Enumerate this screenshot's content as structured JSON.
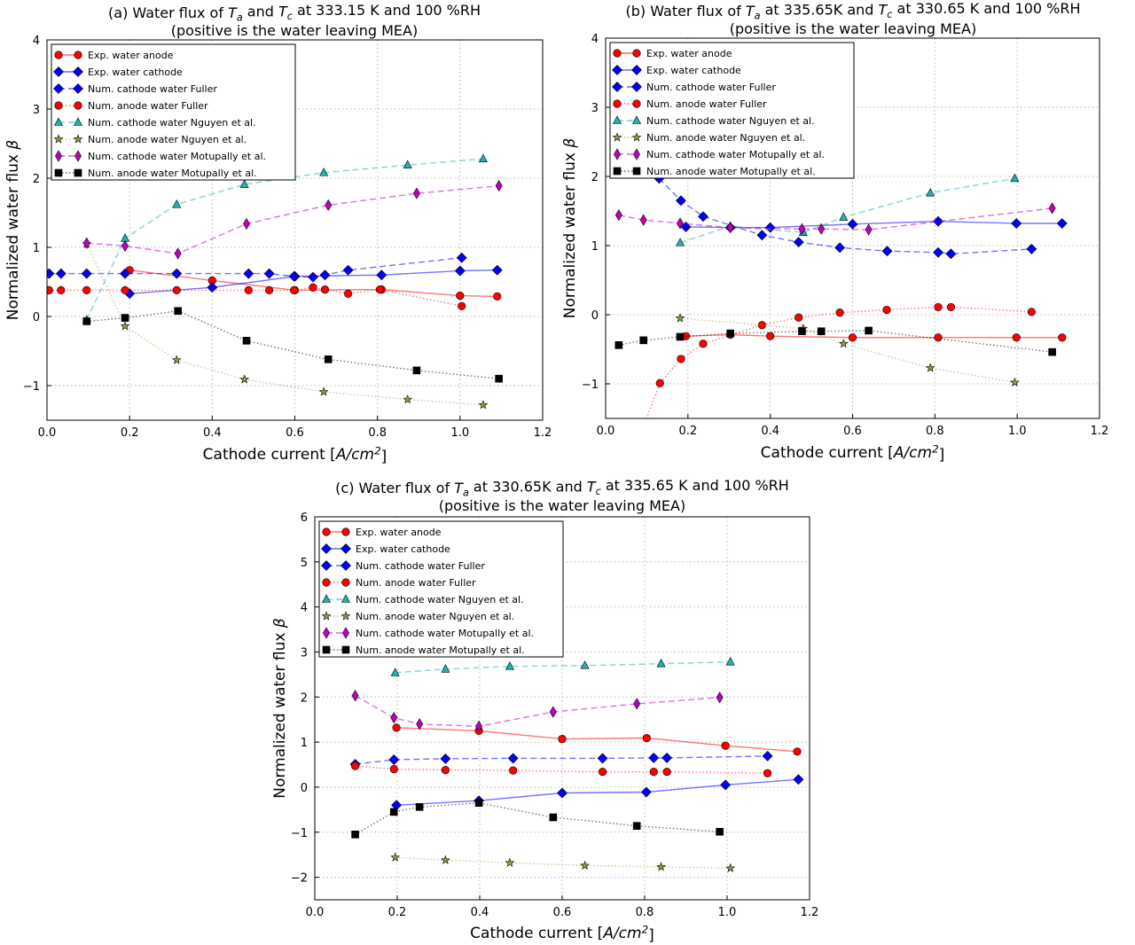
{
  "series_styles": {
    "Exp. water anode": {
      "color": "#ff0000",
      "marker": "circle",
      "line": "solid"
    },
    "Exp. water cathode": {
      "color": "#0000ff",
      "marker": "diamond",
      "line": "solid"
    },
    "Num. cathode water Fuller": {
      "color": "#0000ff",
      "marker": "diamond",
      "line": "dashed"
    },
    "Num. anode water Fuller": {
      "color": "#ff0000",
      "marker": "circle",
      "line": "dotted"
    },
    "Num. cathode water Nguyen et al.": {
      "color": "#20b2b2",
      "marker": "triangle",
      "line": "dashed"
    },
    "Num. anode water Nguyen et al.": {
      "color": "#9a9a3a",
      "marker": "star",
      "line": "dotted"
    },
    "Num. cathode water Motupally et al.": {
      "color": "#bf00bf",
      "marker": "thin-diamond",
      "line": "dashed"
    },
    "Num. anode water Motupally et al.": {
      "color": "#000000",
      "marker": "square",
      "line": "dotted"
    }
  },
  "chart_data": [
    {
      "type": "line",
      "title": [
        "(a) Water flux of $T_a$ and $T_c$ at 333.15 K and 100 %RH",
        "(positive is the water leaving MEA)"
      ],
      "xlabel": "Cathode current [$A/cm^2$]",
      "ylabel": "Normalized water flux $β$",
      "xlim": [
        0,
        1.2
      ],
      "ylim": [
        -1.5,
        4
      ],
      "xticks": [
        "0.0",
        "0.2",
        "0.4",
        "0.6",
        "0.8",
        "1.0",
        "1.2"
      ],
      "yticks": [
        "−1",
        "0",
        "1",
        "2",
        "3",
        "4"
      ],
      "grid": true,
      "legend": "upper-left",
      "series": [
        {
          "name": "Exp. water anode",
          "x": [
            0.2,
            0.4,
            0.6,
            0.81,
            1.0,
            1.09
          ],
          "y": [
            0.67,
            0.52,
            0.38,
            0.39,
            0.3,
            0.29
          ]
        },
        {
          "name": "Exp. water cathode",
          "x": [
            0.2,
            0.4,
            0.6,
            0.81,
            1.0,
            1.09
          ],
          "y": [
            0.33,
            0.42,
            0.58,
            0.6,
            0.66,
            0.67
          ]
        },
        {
          "name": "Num. cathode water Fuller",
          "x": [
            0.005,
            0.034,
            0.096,
            0.189,
            0.314,
            0.488,
            0.538,
            0.598,
            0.644,
            0.673,
            0.729,
            1.004
          ],
          "y": [
            0.62,
            0.62,
            0.62,
            0.62,
            0.62,
            0.62,
            0.62,
            0.58,
            0.57,
            0.6,
            0.67,
            0.85
          ]
        },
        {
          "name": "Num. anode water Fuller",
          "x": [
            0.005,
            0.034,
            0.096,
            0.189,
            0.314,
            0.488,
            0.538,
            0.598,
            0.644,
            0.673,
            0.729,
            0.806,
            1.004
          ],
          "y": [
            0.38,
            0.38,
            0.38,
            0.38,
            0.38,
            0.38,
            0.38,
            0.38,
            0.42,
            0.39,
            0.33,
            0.39,
            0.15
          ]
        },
        {
          "name": "Num. cathode water Nguyen et al.",
          "x": [
            0.096,
            0.189,
            0.314,
            0.478,
            0.67,
            0.873,
            1.056
          ],
          "y": [
            -0.05,
            1.13,
            1.62,
            1.91,
            2.08,
            2.19,
            2.28
          ]
        },
        {
          "name": "Num. anode water Nguyen et al.",
          "x": [
            0.096,
            0.189,
            0.314,
            0.478,
            0.67,
            0.873,
            1.056
          ],
          "y": [
            1.05,
            -0.14,
            -0.63,
            -0.91,
            -1.09,
            -1.2,
            -1.28
          ]
        },
        {
          "name": "Num. cathode water Motupally et al.",
          "x": [
            0.096,
            0.189,
            0.317,
            0.483,
            0.681,
            0.895,
            1.094
          ],
          "y": [
            1.06,
            1.02,
            0.91,
            1.34,
            1.61,
            1.78,
            1.89
          ]
        },
        {
          "name": "Num. anode water Motupally et al.",
          "x": [
            0.096,
            0.189,
            0.317,
            0.483,
            0.681,
            0.895,
            1.094
          ],
          "y": [
            -0.07,
            -0.02,
            0.08,
            -0.35,
            -0.62,
            -0.78,
            -0.9
          ]
        }
      ]
    },
    {
      "type": "line",
      "title": [
        "(b) Water flux of $T_a$ at 335.65K and $T_c$ at 330.65 K and 100 %RH",
        "(positive is the water leaving MEA)"
      ],
      "xlabel": "Cathode current [$A/cm^2$]",
      "ylabel": "Normalized water flux $β$",
      "xlim": [
        0,
        1.2
      ],
      "ylim": [
        -1.5,
        4
      ],
      "xticks": [
        "0.0",
        "0.2",
        "0.4",
        "0.6",
        "0.8",
        "1.0",
        "1.2"
      ],
      "yticks": [
        "−1",
        "0",
        "1",
        "2",
        "3",
        "4"
      ],
      "grid": true,
      "legend": "upper-left",
      "series": [
        {
          "name": "Exp. water anode",
          "x": [
            0.195,
            0.303,
            0.4,
            0.6,
            0.808,
            0.998,
            1.109
          ],
          "y": [
            -0.31,
            -0.29,
            -0.31,
            -0.33,
            -0.33,
            -0.33,
            -0.33
          ]
        },
        {
          "name": "Exp. water cathode",
          "x": [
            0.195,
            0.303,
            0.4,
            0.6,
            0.808,
            0.998,
            1.109
          ],
          "y": [
            1.27,
            1.26,
            1.26,
            1.31,
            1.35,
            1.32,
            1.32
          ]
        },
        {
          "name": "Num. cathode water Fuller",
          "x": [
            0.13,
            0.183,
            0.237,
            0.38,
            0.469,
            0.569,
            0.684,
            0.808,
            0.839,
            1.035
          ],
          "y": [
            1.97,
            1.65,
            1.42,
            1.15,
            1.05,
            0.97,
            0.92,
            0.9,
            0.88,
            0.95
          ]
        },
        {
          "name": "Num. anode water Fuller",
          "x": [
            0.09,
            0.132,
            0.183,
            0.237,
            0.38,
            0.469,
            0.569,
            0.683,
            0.808,
            0.839,
            1.035
          ],
          "y": [
            -1.65,
            -0.99,
            -0.64,
            -0.42,
            -0.15,
            -0.04,
            0.03,
            0.07,
            0.11,
            0.11,
            0.04
          ]
        },
        {
          "name": "Num. cathode water Nguyen et al.",
          "x": [
            0.181,
            0.303,
            0.48,
            0.578,
            0.789,
            0.994
          ],
          "y": [
            1.04,
            1.28,
            1.19,
            1.41,
            1.76,
            1.97
          ]
        },
        {
          "name": "Num. anode water Nguyen et al.",
          "x": [
            0.181,
            0.48,
            0.578,
            0.789,
            0.994
          ],
          "y": [
            -0.05,
            -0.2,
            -0.42,
            -0.77,
            -0.98
          ]
        },
        {
          "name": "Num. cathode water Motupally et al.",
          "x": [
            0.032,
            0.092,
            0.181,
            0.303,
            0.477,
            0.524,
            0.639,
            1.085
          ],
          "y": [
            1.44,
            1.37,
            1.32,
            1.26,
            1.24,
            1.24,
            1.23,
            1.54
          ]
        },
        {
          "name": "Num. anode water Motupally et al.",
          "x": [
            0.032,
            0.092,
            0.181,
            0.303,
            0.477,
            0.524,
            0.639,
            1.085
          ],
          "y": [
            -0.44,
            -0.37,
            -0.32,
            -0.27,
            -0.24,
            -0.24,
            -0.23,
            -0.54
          ]
        }
      ]
    },
    {
      "type": "line",
      "title": [
        "(c) Water flux of $T_a$ at 330.65K and $T_c$ at 335.65 K and 100 %RH",
        "(positive is the water leaving MEA)"
      ],
      "xlabel": "Cathode current [$A/cm^2$]",
      "ylabel": "Normalized water flux $β$",
      "xlim": [
        0,
        1.2
      ],
      "ylim": [
        -2.5,
        6
      ],
      "xticks": [
        "0.0",
        "0.2",
        "0.4",
        "0.6",
        "0.8",
        "1.0",
        "1.2"
      ],
      "yticks": [
        "−2",
        "−1",
        "0",
        "1",
        "2",
        "3",
        "4",
        "5",
        "6"
      ],
      "grid": true,
      "legend": "upper-left",
      "series": [
        {
          "name": "Exp. water anode",
          "x": [
            0.198,
            0.398,
            0.6,
            0.805,
            0.996,
            1.17
          ],
          "y": [
            1.32,
            1.25,
            1.07,
            1.09,
            0.92,
            0.79
          ]
        },
        {
          "name": "Exp. water cathode",
          "x": [
            0.198,
            0.398,
            0.6,
            0.804,
            0.996,
            1.173
          ],
          "y": [
            -0.4,
            -0.3,
            -0.13,
            -0.11,
            0.05,
            0.17
          ]
        },
        {
          "name": "Num. cathode water Fuller",
          "x": [
            0.098,
            0.192,
            0.317,
            0.481,
            0.698,
            0.822,
            0.854,
            1.098
          ],
          "y": [
            0.51,
            0.61,
            0.63,
            0.64,
            0.64,
            0.65,
            0.65,
            0.69
          ]
        },
        {
          "name": "Num. anode water Fuller",
          "x": [
            0.098,
            0.192,
            0.317,
            0.481,
            0.698,
            0.822,
            0.854,
            1.098
          ],
          "y": [
            0.47,
            0.4,
            0.38,
            0.37,
            0.34,
            0.34,
            0.34,
            0.31
          ]
        },
        {
          "name": "Num. cathode water Nguyen et al.",
          "x": [
            0.195,
            0.317,
            0.473,
            0.655,
            0.84,
            1.008
          ],
          "y": [
            2.54,
            2.62,
            2.68,
            2.7,
            2.74,
            2.78
          ]
        },
        {
          "name": "Num. anode water Nguyen et al.",
          "x": [
            0.195,
            0.317,
            0.473,
            0.655,
            0.84,
            1.008
          ],
          "y": [
            -1.56,
            -1.62,
            -1.68,
            -1.74,
            -1.77,
            -1.8
          ]
        },
        {
          "name": "Num. cathode water Motupally et al.",
          "x": [
            0.098,
            0.192,
            0.254,
            0.398,
            0.578,
            0.781,
            0.982
          ],
          "y": [
            2.03,
            1.54,
            1.4,
            1.35,
            1.67,
            1.85,
            1.99
          ]
        },
        {
          "name": "Num. anode water Motupally et al.",
          "x": [
            0.098,
            0.192,
            0.254,
            0.398,
            0.578,
            0.781,
            0.982
          ],
          "y": [
            -1.05,
            -0.55,
            -0.44,
            -0.35,
            -0.67,
            -0.86,
            -0.99
          ]
        }
      ]
    }
  ]
}
